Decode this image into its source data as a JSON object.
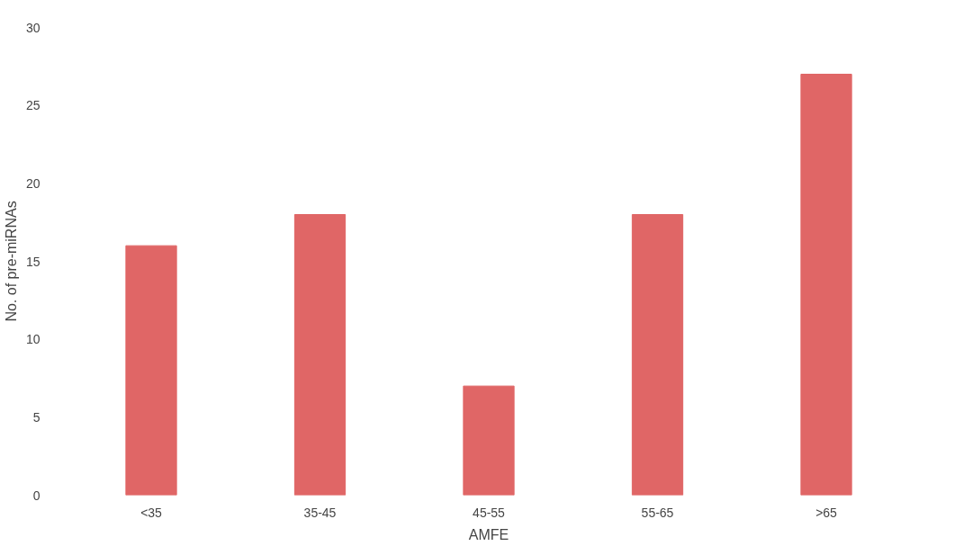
{
  "chart_data": {
    "type": "bar",
    "xlabel": "AMFE",
    "ylabel": "No. of pre-miRNAs",
    "categories": [
      "<35",
      "35-45",
      "45-55",
      "55-65",
      ">65"
    ],
    "values": [
      16,
      18,
      7,
      18,
      27
    ],
    "color": "#e06666",
    "ylim": [
      0,
      30
    ],
    "yticks": [
      0,
      5,
      10,
      15,
      20,
      25,
      30
    ],
    "grid": false
  }
}
